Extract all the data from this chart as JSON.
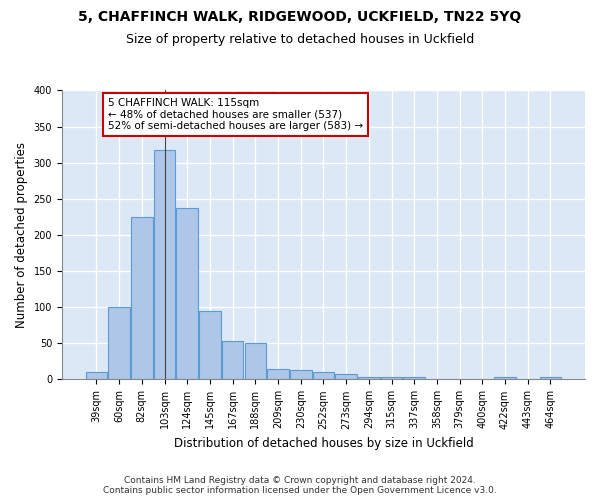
{
  "title": "5, CHAFFINCH WALK, RIDGEWOOD, UCKFIELD, TN22 5YQ",
  "subtitle": "Size of property relative to detached houses in Uckfield",
  "xlabel": "Distribution of detached houses by size in Uckfield",
  "ylabel": "Number of detached properties",
  "footer_line1": "Contains HM Land Registry data © Crown copyright and database right 2024.",
  "footer_line2": "Contains public sector information licensed under the Open Government Licence v3.0.",
  "categories": [
    "39sqm",
    "60sqm",
    "82sqm",
    "103sqm",
    "124sqm",
    "145sqm",
    "167sqm",
    "188sqm",
    "209sqm",
    "230sqm",
    "252sqm",
    "273sqm",
    "294sqm",
    "315sqm",
    "337sqm",
    "358sqm",
    "379sqm",
    "400sqm",
    "422sqm",
    "443sqm",
    "464sqm"
  ],
  "values": [
    10,
    100,
    225,
    318,
    238,
    95,
    53,
    50,
    15,
    13,
    10,
    7,
    4,
    4,
    3,
    0,
    0,
    0,
    3,
    0,
    3
  ],
  "bar_color": "#aec6e8",
  "bar_edge_color": "#5b9bd5",
  "annotation_line1": "5 CHAFFINCH WALK: 115sqm",
  "annotation_line2": "← 48% of detached houses are smaller (537)",
  "annotation_line3": "52% of semi-detached houses are larger (583) →",
  "annotation_box_color": "#ffffff",
  "annotation_box_edge_color": "#cc0000",
  "vline_x": 3.0,
  "bg_color": "#dce8f5",
  "grid_color": "#ffffff",
  "ylim": [
    0,
    400
  ],
  "yticks": [
    0,
    50,
    100,
    150,
    200,
    250,
    300,
    350,
    400
  ],
  "title_fontsize": 10,
  "subtitle_fontsize": 9,
  "xlabel_fontsize": 8.5,
  "ylabel_fontsize": 8.5,
  "tick_fontsize": 7,
  "footer_fontsize": 6.5,
  "annot_fontsize": 7.5
}
